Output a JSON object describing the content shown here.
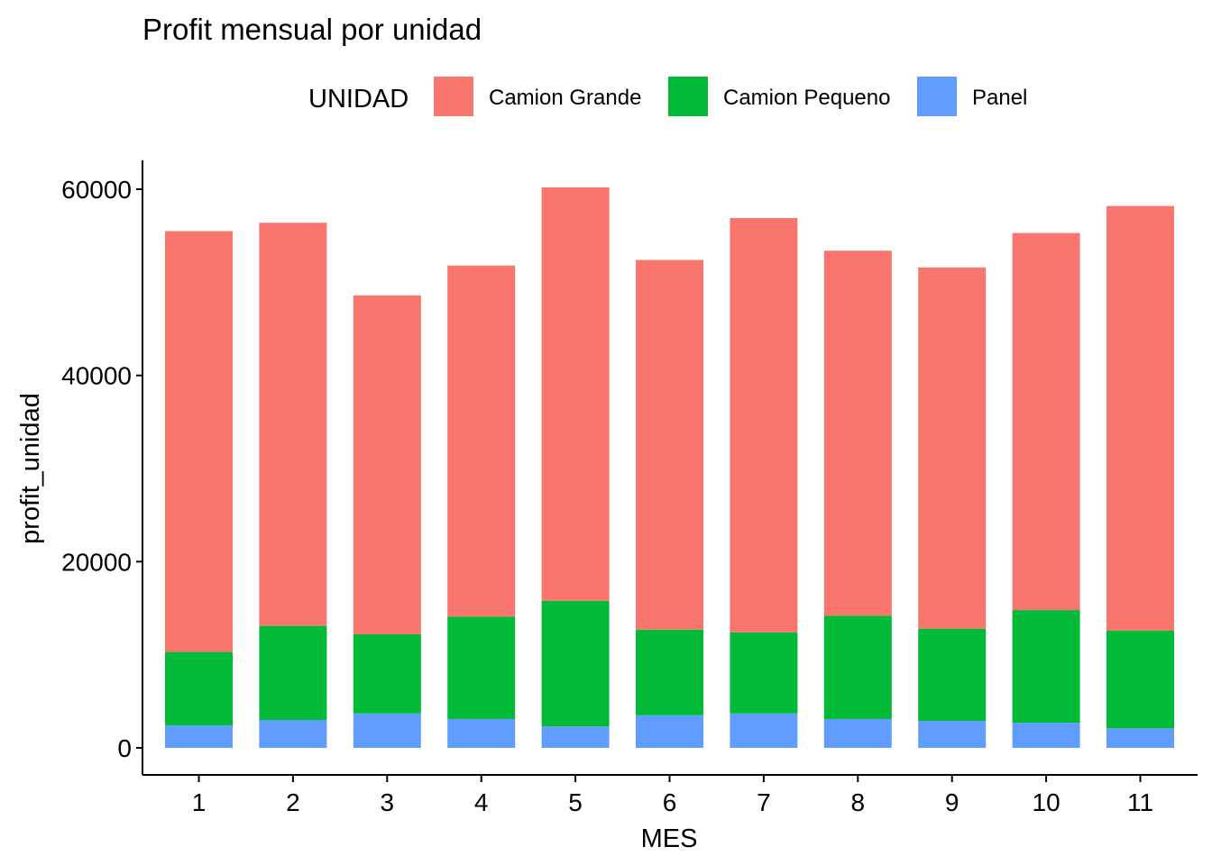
{
  "chart_data": {
    "type": "bar",
    "stacked": true,
    "title": "Profit mensual por unidad",
    "xlabel": "MES",
    "ylabel": "profit_unidad",
    "categories": [
      "1",
      "2",
      "3",
      "4",
      "5",
      "6",
      "7",
      "8",
      "9",
      "10",
      "11"
    ],
    "ylim": [
      0,
      62000
    ],
    "yticks": [
      "0",
      "20000",
      "40000",
      "60000"
    ],
    "legend": {
      "title": "UNIDAD",
      "position": "top"
    },
    "series": [
      {
        "name": "Panel",
        "color": "#619CFF",
        "values": [
          2400,
          3000,
          3700,
          3100,
          2300,
          3500,
          3700,
          3100,
          2900,
          2700,
          2100
        ]
      },
      {
        "name": "Camion Pequeno",
        "color": "#00BA38",
        "values": [
          7900,
          10100,
          8500,
          11000,
          13500,
          9200,
          8700,
          11100,
          9900,
          12100,
          10500
        ]
      },
      {
        "name": "Camion Grande",
        "color": "#F8766D",
        "values": [
          45200,
          43300,
          36400,
          37700,
          44400,
          39700,
          44500,
          39200,
          38800,
          40500,
          45600
        ]
      }
    ],
    "legend_order": [
      "Camion Grande",
      "Camion Pequeno",
      "Panel"
    ],
    "grid": false
  }
}
